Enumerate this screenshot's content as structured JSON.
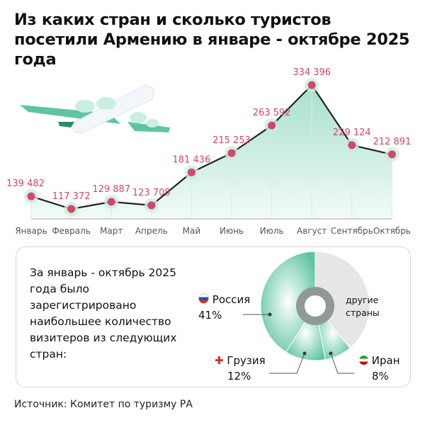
{
  "title": "Из каких стран и сколько туристов посетили Армению в январе - октябре 2025 года",
  "chart_data": [
    {
      "type": "area",
      "categories": [
        "Январь",
        "Февраль",
        "Март",
        "Апрель",
        "Май",
        "Июнь",
        "Июль",
        "Август",
        "Сентябрь",
        "Октябрь"
      ],
      "values": [
        139482,
        117372,
        129887,
        123705,
        181436,
        215253,
        263592,
        334396,
        229124,
        212891
      ],
      "labels": [
        "139 482",
        "117 372",
        "129 887",
        "123 705",
        "181 436",
        "215 253",
        "263 592",
        "334 396",
        "229 124",
        "212 891"
      ],
      "colors": {
        "line": "#222222",
        "point": "#d2476a",
        "label": "#d2476a",
        "area": "#bfe8d9"
      }
    },
    {
      "type": "pie",
      "donut": true,
      "slices": [
        {
          "name": "другие страны",
          "value": 39,
          "color": "#e4e4e6"
        },
        {
          "name": "Иран",
          "value": 8,
          "color": "#7fd3b6"
        },
        {
          "name": "Грузия",
          "value": 12,
          "color": "#86d6bb"
        },
        {
          "name": "Россия",
          "value": 41,
          "color": "#5fc4a2"
        }
      ],
      "labels": {
        "russia": "Россия",
        "russia_pct": "41%",
        "georgia": "Грузия",
        "georgia_pct": "12%",
        "iran": "Иран",
        "iran_pct": "8%",
        "other_line1": "другие",
        "other_line2": "страны"
      }
    }
  ],
  "intro": "За январь - октябрь 2025 года было зарегистрировано наибольшее количество визитеров из следующих стран:",
  "source": "Источник: Комитет по туризму РА"
}
